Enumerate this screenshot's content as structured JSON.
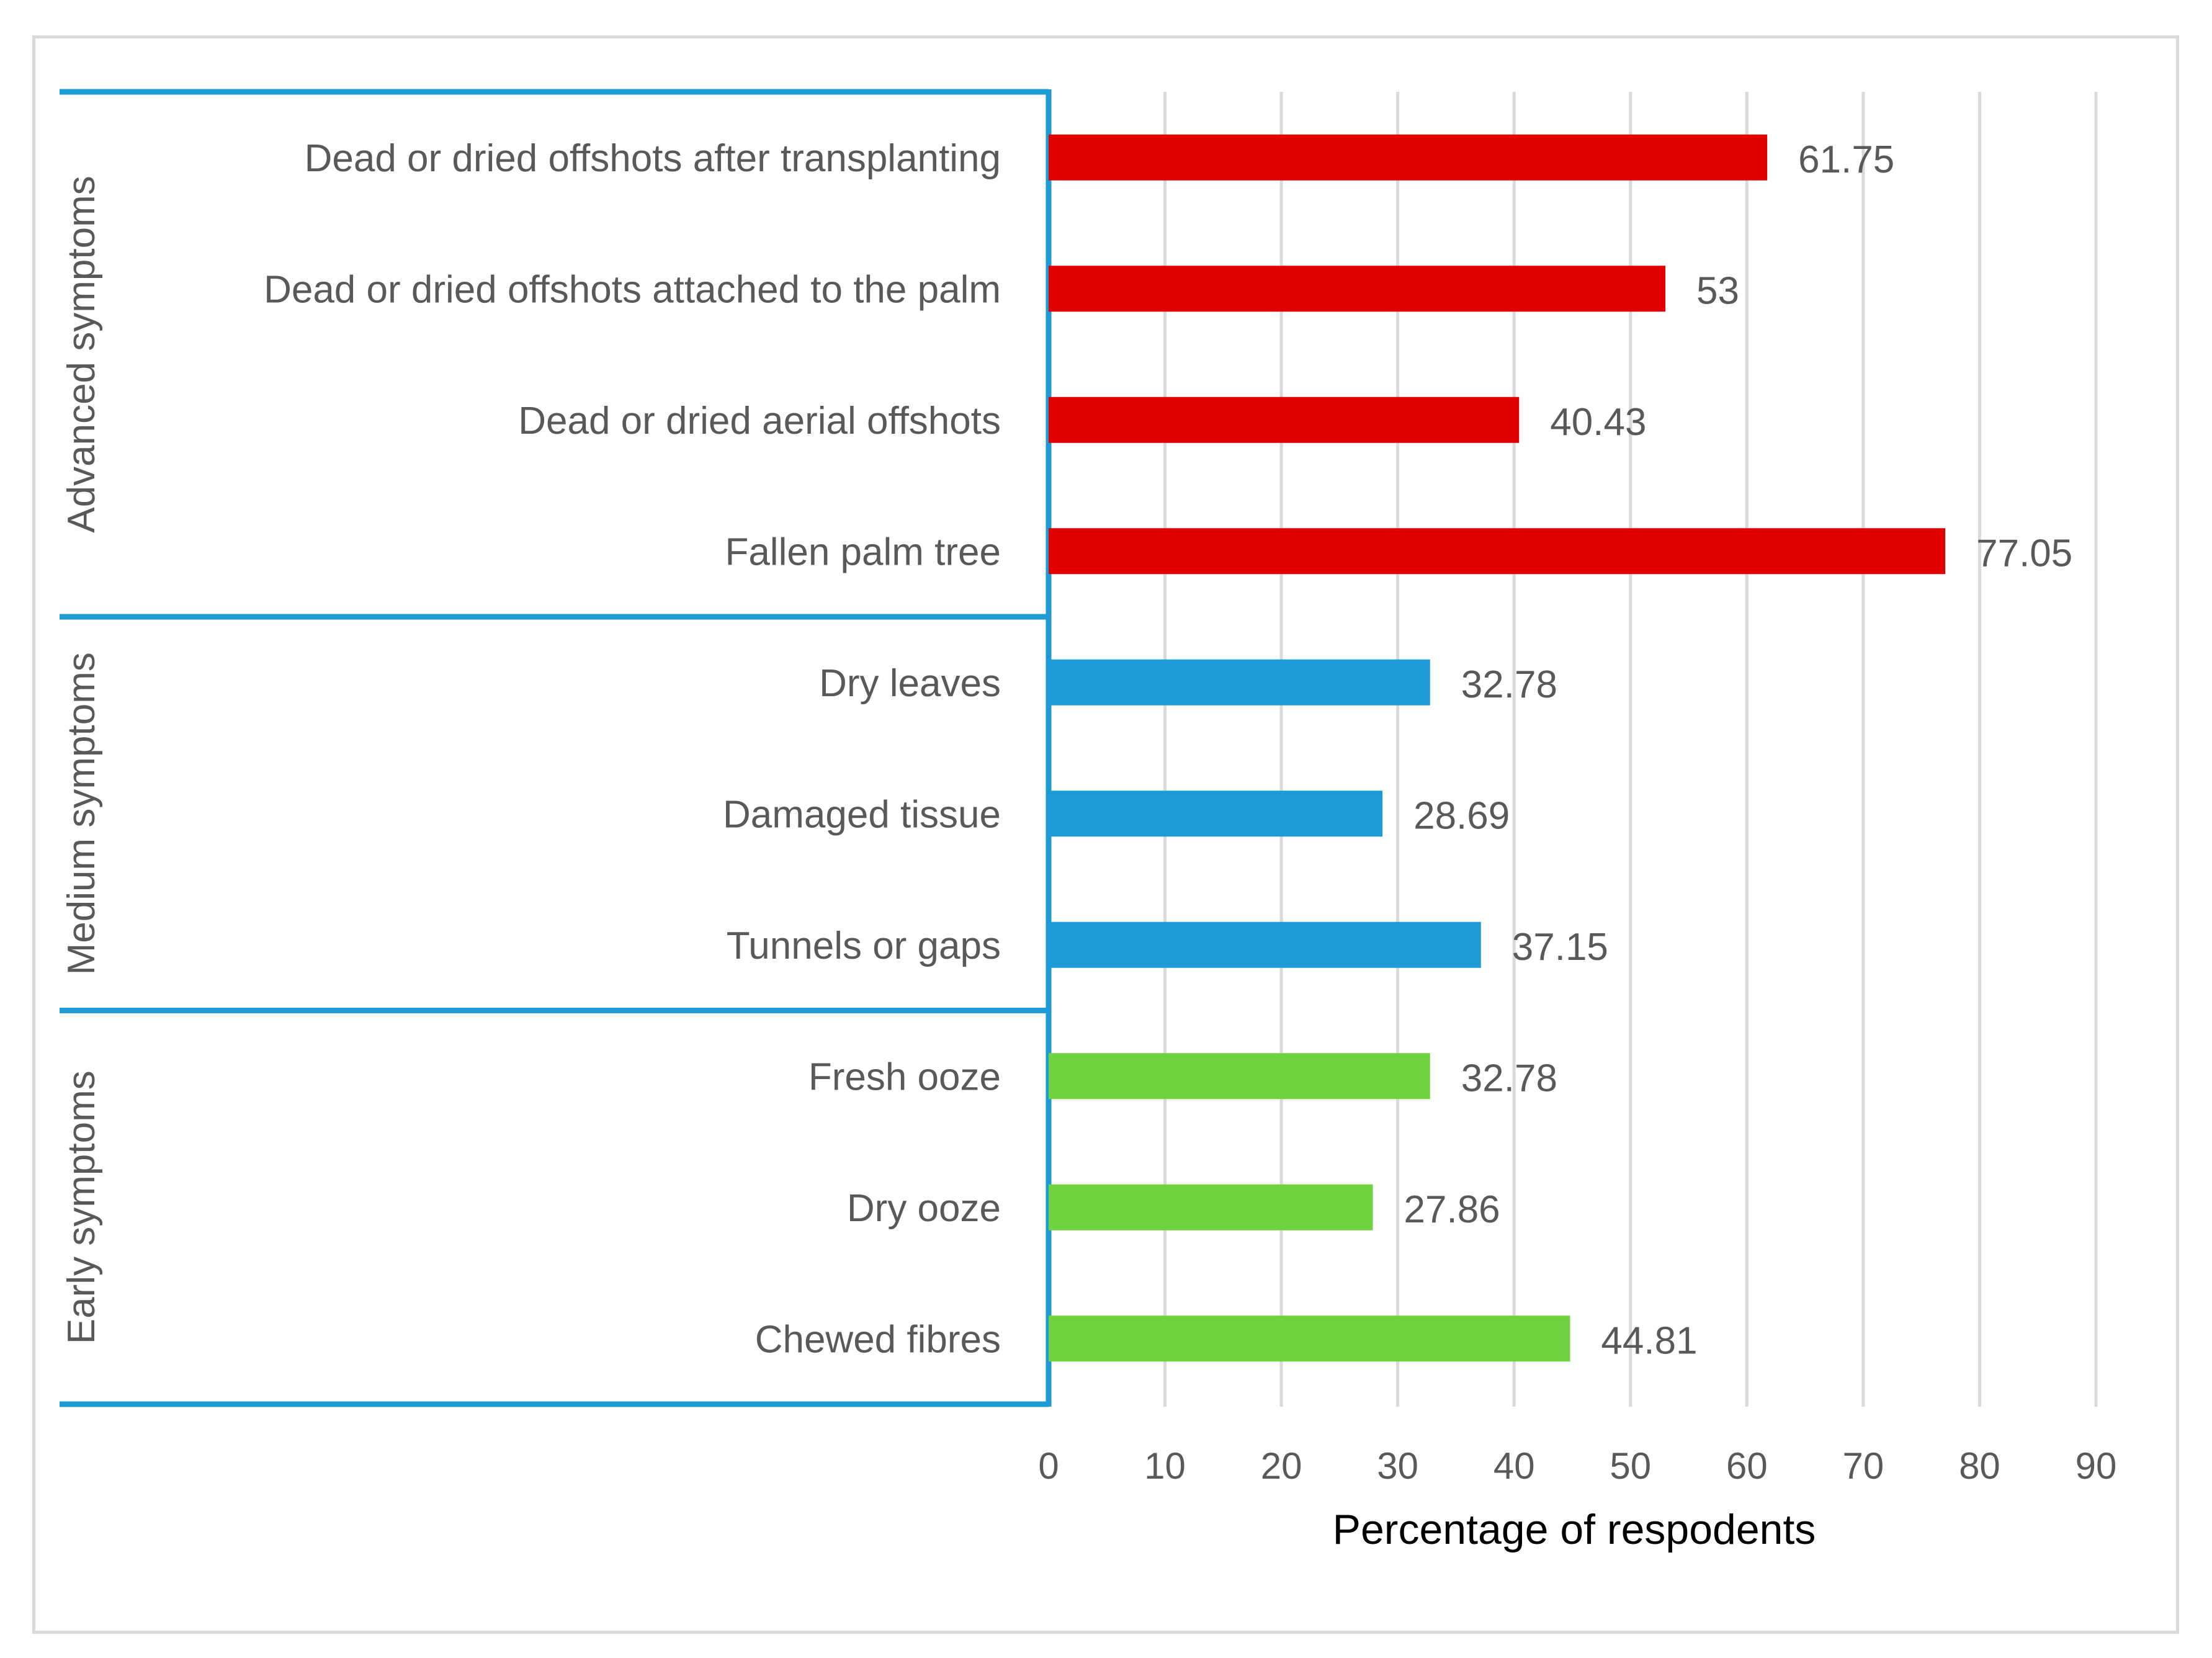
{
  "chart_data": {
    "type": "bar",
    "orientation": "horizontal",
    "xlabel": "Percentage of respodents",
    "xlim": [
      0,
      90
    ],
    "xticks": [
      0,
      10,
      20,
      30,
      40,
      50,
      60,
      70,
      80,
      90
    ],
    "grid": true,
    "groups": [
      {
        "name": "Advanced symptoms",
        "color": "#e00000",
        "items": [
          {
            "label": "Dead or dried offshots after transplanting",
            "value": 61.75,
            "value_label": "61.75"
          },
          {
            "label": "Dead or dried offshots attached to the palm",
            "value": 53,
            "value_label": "53"
          },
          {
            "label": "Dead or dried aerial offshots",
            "value": 40.43,
            "value_label": "40.43"
          },
          {
            "label": "Fallen palm tree",
            "value": 77.05,
            "value_label": "77.05"
          }
        ]
      },
      {
        "name": "Medium symptoms",
        "color": "#1e9ad6",
        "items": [
          {
            "label": "Dry leaves",
            "value": 32.78,
            "value_label": "32.78"
          },
          {
            "label": "Damaged tissue",
            "value": 28.69,
            "value_label": "28.69"
          },
          {
            "label": "Tunnels or gaps",
            "value": 37.15,
            "value_label": "37.15"
          }
        ]
      },
      {
        "name": "Early symptoms",
        "color": "#6fd33f",
        "items": [
          {
            "label": "Fresh ooze",
            "value": 32.78,
            "value_label": "32.78"
          },
          {
            "label": "Dry ooze",
            "value": 27.86,
            "value_label": "27.86"
          },
          {
            "label": "Chewed fibres",
            "value": 44.81,
            "value_label": "44.81"
          }
        ]
      }
    ],
    "colors": {
      "grid": "#d9d9d9",
      "text": "#595959",
      "group_border": "#1e9ad6"
    }
  }
}
